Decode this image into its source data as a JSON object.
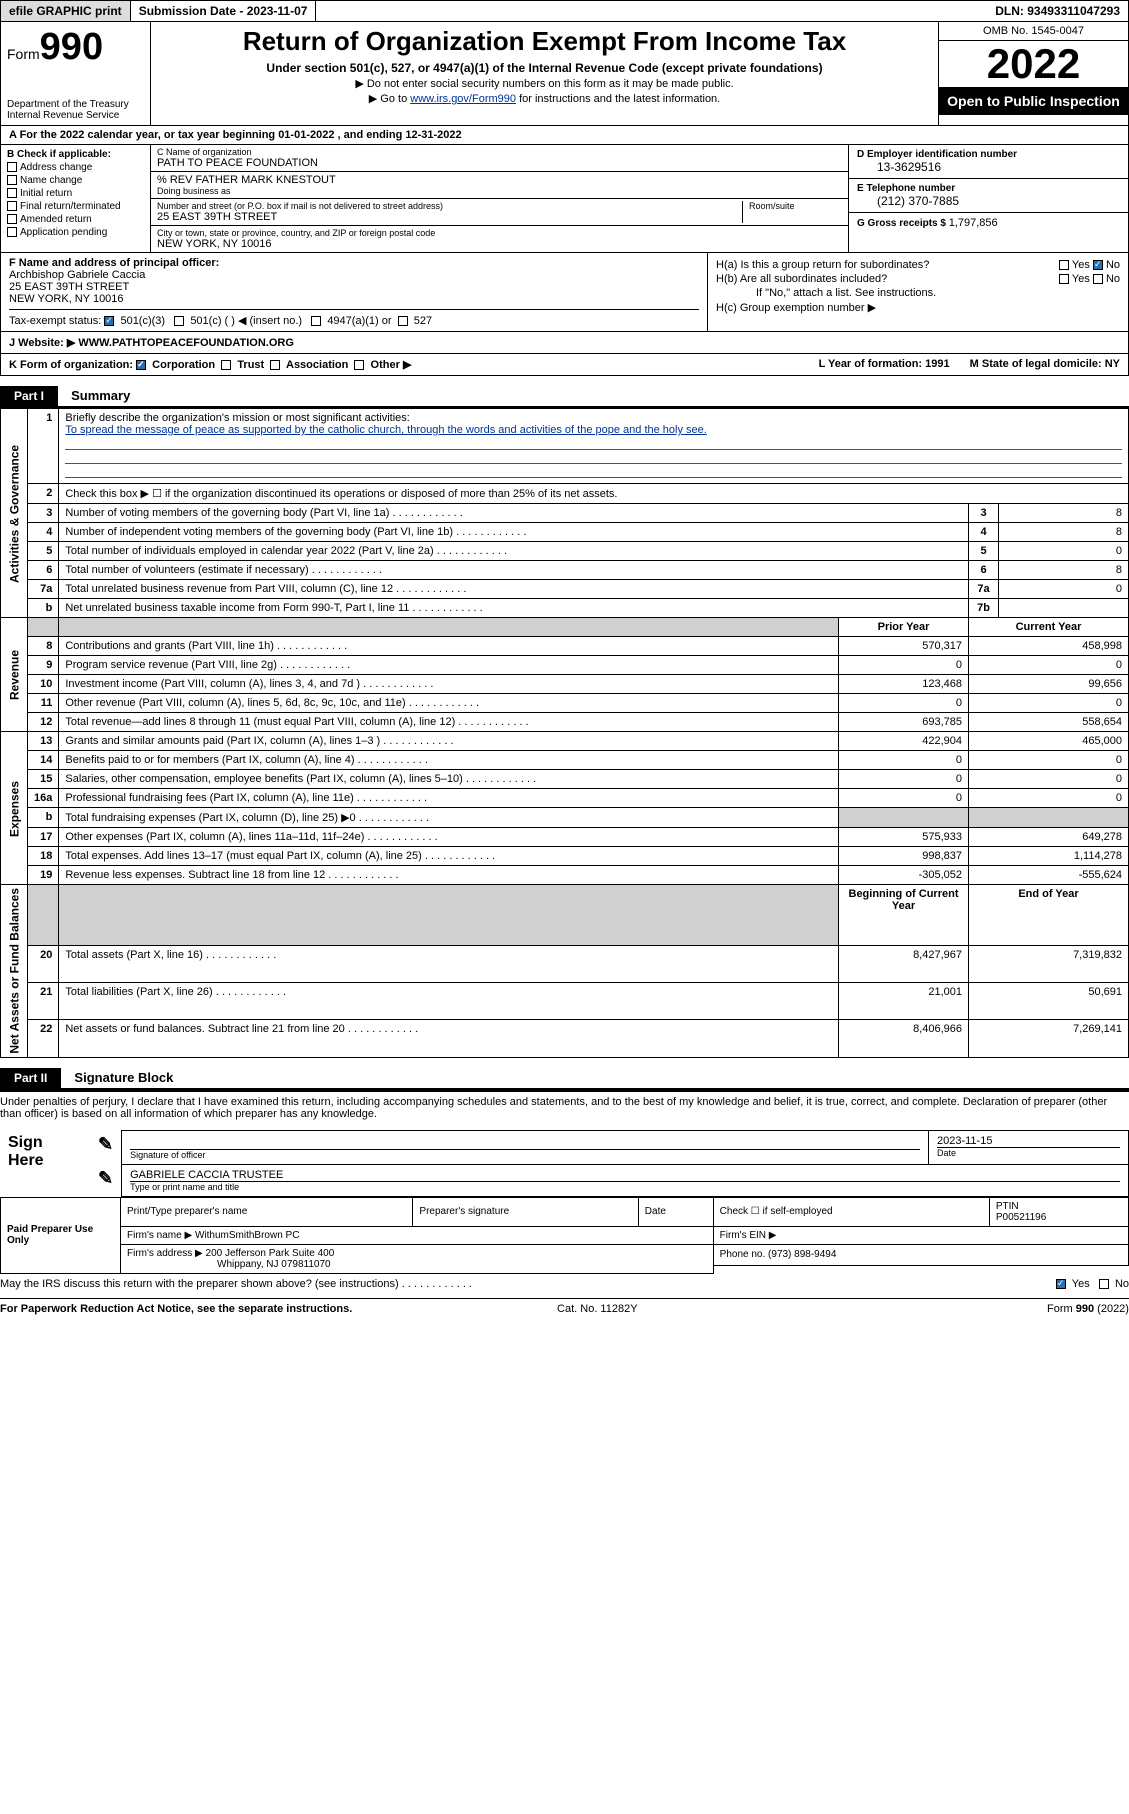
{
  "topbar": {
    "efile": "efile GRAPHIC print",
    "sub_label": "Submission Date - ",
    "sub_date": "2023-11-07",
    "dln": "DLN: 93493311047293"
  },
  "header": {
    "form_label": "Form",
    "form_num": "990",
    "dept": "Department of the Treasury",
    "irs": "Internal Revenue Service",
    "title": "Return of Organization Exempt From Income Tax",
    "sub1": "Under section 501(c), 527, or 4947(a)(1) of the Internal Revenue Code (except private foundations)",
    "sub2": "▶ Do not enter social security numbers on this form as it may be made public.",
    "sub3_pre": "▶ Go to ",
    "sub3_link": "www.irs.gov/Form990",
    "sub3_post": " for instructions and the latest information.",
    "omb": "OMB No. 1545-0047",
    "year": "2022",
    "openpub": "Open to Public Inspection"
  },
  "rowA": "A For the 2022 calendar year, or tax year beginning 01-01-2022   , and ending 12-31-2022",
  "colB": {
    "hdr": "B Check if applicable:",
    "items": [
      "Address change",
      "Name change",
      "Initial return",
      "Final return/terminated",
      "Amended return",
      "Application pending"
    ]
  },
  "colC": {
    "name_lbl": "C Name of organization",
    "name": "PATH TO PEACE FOUNDATION",
    "care_lbl": "",
    "care": "% REV FATHER MARK KNESTOUT",
    "dba_lbl": "Doing business as",
    "addr_lbl": "Number and street (or P.O. box if mail is not delivered to street address)",
    "addr": "25 EAST 39TH STREET",
    "room_lbl": "Room/suite",
    "city_lbl": "City or town, state or province, country, and ZIP or foreign postal code",
    "city": "NEW YORK, NY  10016"
  },
  "colDE": {
    "d_lbl": "D Employer identification number",
    "d_val": "13-3629516",
    "e_lbl": "E Telephone number",
    "e_val": "(212) 370-7885",
    "g_lbl": "G Gross receipts $ ",
    "g_val": "1,797,856"
  },
  "rowF": {
    "lbl": "F Name and address of principal officer:",
    "name": "Archbishop Gabriele Caccia",
    "addr1": "25 EAST 39TH STREET",
    "addr2": "NEW YORK, NY  10016"
  },
  "rowH": {
    "ha": "H(a)  Is this a group return for subordinates?",
    "hb": "H(b)  Are all subordinates included?",
    "hb_note": "If \"No,\" attach a list. See instructions.",
    "hc": "H(c)  Group exemption number ▶"
  },
  "yn": {
    "yes": "Yes",
    "no": "No"
  },
  "taxexempt": {
    "lbl": "Tax-exempt status:",
    "c3": "501(c)(3)",
    "c": "501(c) (  ) ◀ (insert no.)",
    "a1": "4947(a)(1) or",
    "s527": "527"
  },
  "rowJ": {
    "lbl": "J   Website: ▶ ",
    "val": "WWW.PATHTOPEACEFOUNDATION.ORG"
  },
  "rowK": {
    "lbl": "K Form of organization:",
    "corp": "Corporation",
    "trust": "Trust",
    "assoc": "Association",
    "other": "Other ▶",
    "l_lbl": "L Year of formation: ",
    "l_val": "1991",
    "m_lbl": "M State of legal domicile: ",
    "m_val": "NY"
  },
  "part1": {
    "hdr": "Part I",
    "title": "Summary"
  },
  "summary": {
    "side1": "Activities & Governance",
    "side2": "Revenue",
    "side3": "Expenses",
    "side4": "Net Assets or Fund Balances",
    "l1_lbl": "Briefly describe the organization's mission or most significant activities:",
    "l1_val": "To spread the message of peace as supported by the catholic church, through the words and activities of the pope and the holy see.",
    "l2": "Check this box ▶ ☐  if the organization discontinued its operations or disposed of more than 25% of its net assets.",
    "rows_top": [
      {
        "n": "3",
        "d": "Number of voting members of the governing body (Part VI, line 1a)",
        "box": "3",
        "v": "8"
      },
      {
        "n": "4",
        "d": "Number of independent voting members of the governing body (Part VI, line 1b)",
        "box": "4",
        "v": "8"
      },
      {
        "n": "5",
        "d": "Total number of individuals employed in calendar year 2022 (Part V, line 2a)",
        "box": "5",
        "v": "0"
      },
      {
        "n": "6",
        "d": "Total number of volunteers (estimate if necessary)",
        "box": "6",
        "v": "8"
      },
      {
        "n": "7a",
        "d": "Total unrelated business revenue from Part VIII, column (C), line 12",
        "box": "7a",
        "v": "0"
      },
      {
        "n": "b",
        "d": "Net unrelated business taxable income from Form 990-T, Part I, line 11",
        "box": "7b",
        "v": ""
      }
    ],
    "colhdr_prior": "Prior Year",
    "colhdr_curr": "Current Year",
    "rows_rev": [
      {
        "n": "8",
        "d": "Contributions and grants (Part VIII, line 1h)",
        "p": "570,317",
        "c": "458,998"
      },
      {
        "n": "9",
        "d": "Program service revenue (Part VIII, line 2g)",
        "p": "0",
        "c": "0"
      },
      {
        "n": "10",
        "d": "Investment income (Part VIII, column (A), lines 3, 4, and 7d )",
        "p": "123,468",
        "c": "99,656"
      },
      {
        "n": "11",
        "d": "Other revenue (Part VIII, column (A), lines 5, 6d, 8c, 9c, 10c, and 11e)",
        "p": "0",
        "c": "0"
      },
      {
        "n": "12",
        "d": "Total revenue—add lines 8 through 11 (must equal Part VIII, column (A), line 12)",
        "p": "693,785",
        "c": "558,654"
      }
    ],
    "rows_exp": [
      {
        "n": "13",
        "d": "Grants and similar amounts paid (Part IX, column (A), lines 1–3 )",
        "p": "422,904",
        "c": "465,000"
      },
      {
        "n": "14",
        "d": "Benefits paid to or for members (Part IX, column (A), line 4)",
        "p": "0",
        "c": "0"
      },
      {
        "n": "15",
        "d": "Salaries, other compensation, employee benefits (Part IX, column (A), lines 5–10)",
        "p": "0",
        "c": "0"
      },
      {
        "n": "16a",
        "d": "Professional fundraising fees (Part IX, column (A), line 11e)",
        "p": "0",
        "c": "0"
      },
      {
        "n": "b",
        "d": "Total fundraising expenses (Part IX, column (D), line 25) ▶0",
        "p": "",
        "c": "",
        "shade": true
      },
      {
        "n": "17",
        "d": "Other expenses (Part IX, column (A), lines 11a–11d, 11f–24e)",
        "p": "575,933",
        "c": "649,278"
      },
      {
        "n": "18",
        "d": "Total expenses. Add lines 13–17 (must equal Part IX, column (A), line 25)",
        "p": "998,837",
        "c": "1,114,278"
      },
      {
        "n": "19",
        "d": "Revenue less expenses. Subtract line 18 from line 12",
        "p": "-305,052",
        "c": "-555,624"
      }
    ],
    "colhdr_beg": "Beginning of Current Year",
    "colhdr_end": "End of Year",
    "rows_net": [
      {
        "n": "20",
        "d": "Total assets (Part X, line 16)",
        "p": "8,427,967",
        "c": "7,319,832"
      },
      {
        "n": "21",
        "d": "Total liabilities (Part X, line 26)",
        "p": "21,001",
        "c": "50,691"
      },
      {
        "n": "22",
        "d": "Net assets or fund balances. Subtract line 21 from line 20",
        "p": "8,406,966",
        "c": "7,269,141"
      }
    ]
  },
  "part2": {
    "hdr": "Part II",
    "title": "Signature Block"
  },
  "sig": {
    "decl": "Under penalties of perjury, I declare that I have examined this return, including accompanying schedules and statements, and to the best of my knowledge and belief, it is true, correct, and complete. Declaration of preparer (other than officer) is based on all information of which preparer has any knowledge.",
    "sign_here": "Sign Here",
    "sig_officer": "Signature of officer",
    "date_lbl": "Date",
    "date_val": "2023-11-15",
    "name_title": "GABRIELE CACCIA  TRUSTEE",
    "type_name": "Type or print name and title"
  },
  "prep": {
    "side": "Paid Preparer Use Only",
    "c1": "Print/Type preparer's name",
    "c2": "Preparer's signature",
    "c3": "Date",
    "c4_chk": "Check ☐ if self-employed",
    "c5_lbl": "PTIN",
    "c5_val": "P00521196",
    "firm_name_lbl": "Firm's name    ▶ ",
    "firm_name": "WithumSmithBrown PC",
    "firm_ein": "Firm's EIN ▶",
    "firm_addr_lbl": "Firm's address ▶ ",
    "firm_addr1": "200 Jefferson Park Suite 400",
    "firm_addr2": "Whippany, NJ  079811070",
    "phone_lbl": "Phone no. ",
    "phone": "(973) 898-9494"
  },
  "discuss": "May the IRS discuss this return with the preparer shown above? (see instructions)",
  "footer": {
    "left": "For Paperwork Reduction Act Notice, see the separate instructions.",
    "mid": "Cat. No. 11282Y",
    "right": "Form 990 (2022)"
  }
}
